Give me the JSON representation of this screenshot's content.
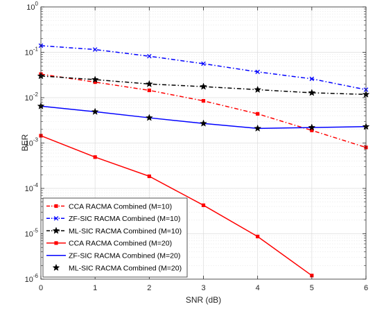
{
  "chart_data": {
    "type": "line",
    "xlabel": "SNR (dB)",
    "ylabel": "BER",
    "xlim": [
      0,
      6
    ],
    "ylim": [
      1e-06,
      1
    ],
    "yscale": "log",
    "grid": true,
    "legend_position": "bottom-left",
    "x_ticks": [
      "0",
      "1",
      "2",
      "3",
      "4",
      "5",
      "6"
    ],
    "y_ticks": [
      {
        "base": "10",
        "exp": "-6"
      },
      {
        "base": "10",
        "exp": "-5"
      },
      {
        "base": "10",
        "exp": "-4"
      },
      {
        "base": "10",
        "exp": "-3"
      },
      {
        "base": "10",
        "exp": "-2"
      },
      {
        "base": "10",
        "exp": "-1"
      },
      {
        "base": "10",
        "exp": "0"
      }
    ],
    "series": [
      {
        "name": "CCA RACMA Combined (M=10)",
        "color": "#ff0000",
        "dash": "dashdot",
        "marker": "square",
        "x": [
          0,
          1,
          2,
          3,
          4,
          5,
          6
        ],
        "y": [
          0.033,
          0.022,
          0.0145,
          0.0085,
          0.0044,
          0.0019,
          0.0008
        ]
      },
      {
        "name": "ZF-SIC RACMA Combined (M=10)",
        "color": "#0000ff",
        "dash": "dashdot",
        "marker": "x",
        "x": [
          0,
          1,
          2,
          3,
          4,
          5,
          6
        ],
        "y": [
          0.14,
          0.115,
          0.082,
          0.056,
          0.037,
          0.026,
          0.015
        ]
      },
      {
        "name": "ML-SIC RACMA Combined (M=10)",
        "color": "#000000",
        "dash": "dashdot",
        "marker": "star",
        "x": [
          0,
          1,
          2,
          3,
          4,
          5,
          6
        ],
        "y": [
          0.03,
          0.025,
          0.02,
          0.0175,
          0.015,
          0.0128,
          0.0118
        ]
      },
      {
        "name": "CCA RACMA Combined (M=20)",
        "color": "#ff0000",
        "dash": "solid",
        "marker": "square",
        "x": [
          0,
          1,
          2,
          3,
          4,
          5
        ],
        "y": [
          0.00145,
          0.00049,
          0.000185,
          4.25e-05,
          8.7e-06,
          1.2e-06
        ]
      },
      {
        "name": "ZF-SIC RACMA Combined (M=20)",
        "color": "#0000ff",
        "dash": "solid",
        "marker": "none",
        "x": [
          0,
          1,
          2,
          3,
          4,
          5,
          6
        ],
        "y": [
          0.0065,
          0.0049,
          0.0036,
          0.0027,
          0.0021,
          0.0022,
          0.0023
        ]
      },
      {
        "name": "ML-SIC RACMA Combined (M=20)",
        "color": "#000000",
        "dash": "none",
        "marker": "star",
        "x": [
          0,
          1,
          2,
          3,
          4,
          5,
          6
        ],
        "y": [
          0.0065,
          0.0049,
          0.0036,
          0.0027,
          0.0021,
          0.0022,
          0.0023
        ]
      }
    ]
  }
}
